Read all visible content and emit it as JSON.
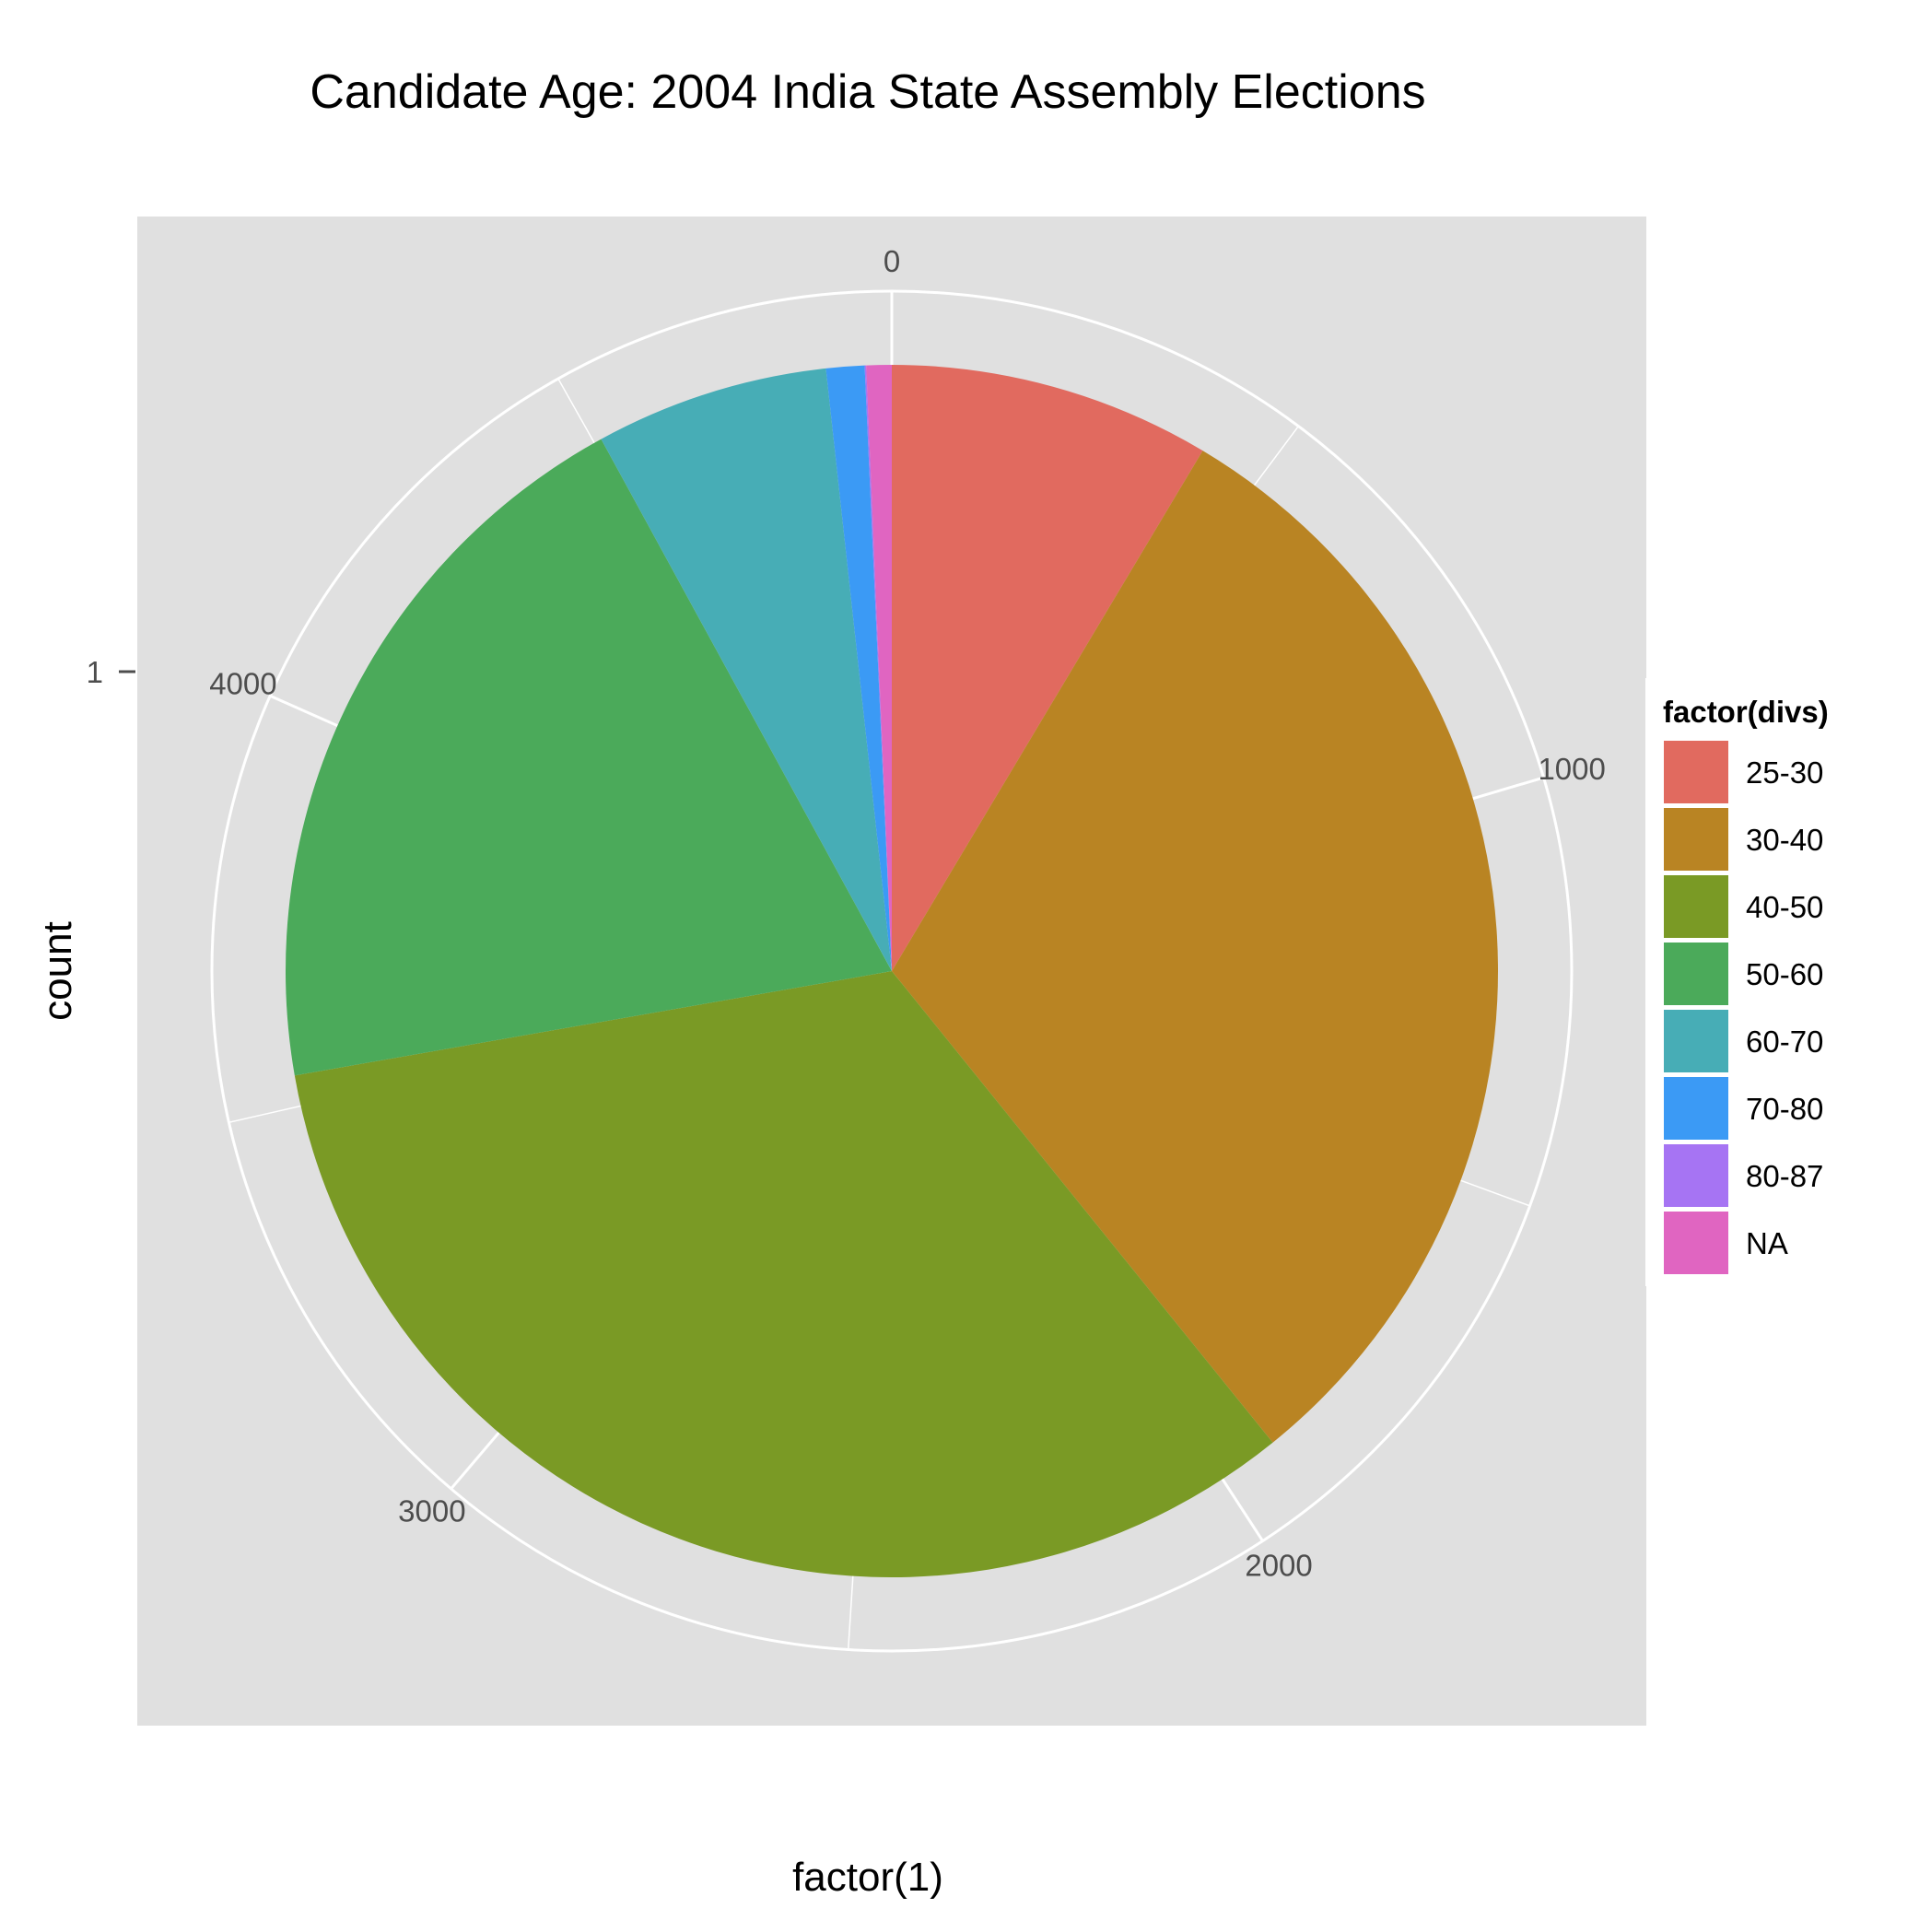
{
  "chart_data": {
    "type": "pie",
    "title": "Candidate Age: 2004 India State Assembly Elections",
    "xlabel": "factor(1)",
    "ylabel": "count",
    "y_tick": "1",
    "radial_ticks": [
      "0",
      "1000",
      "2000",
      "3000",
      "4000"
    ],
    "radial_tick_values": [
      0,
      1000,
      2000,
      3000,
      4000
    ],
    "total": 4900,
    "legend": {
      "title": "factor(divs)",
      "position": "right"
    },
    "categories": [
      "25-30",
      "30-40",
      "40-50",
      "50-60",
      "60-70",
      "70-80",
      "80-87",
      "NA"
    ],
    "values": [
      420,
      1500,
      1620,
      970,
      305,
      50,
      2,
      33
    ],
    "colors": [
      "#E16A5F",
      "#B98423",
      "#7A9A25",
      "#4BAA5A",
      "#47ADB6",
      "#3B9AF5",
      "#A674F3",
      "#E065C1"
    ],
    "panel_background": "#E0E0E0",
    "grid": true
  }
}
